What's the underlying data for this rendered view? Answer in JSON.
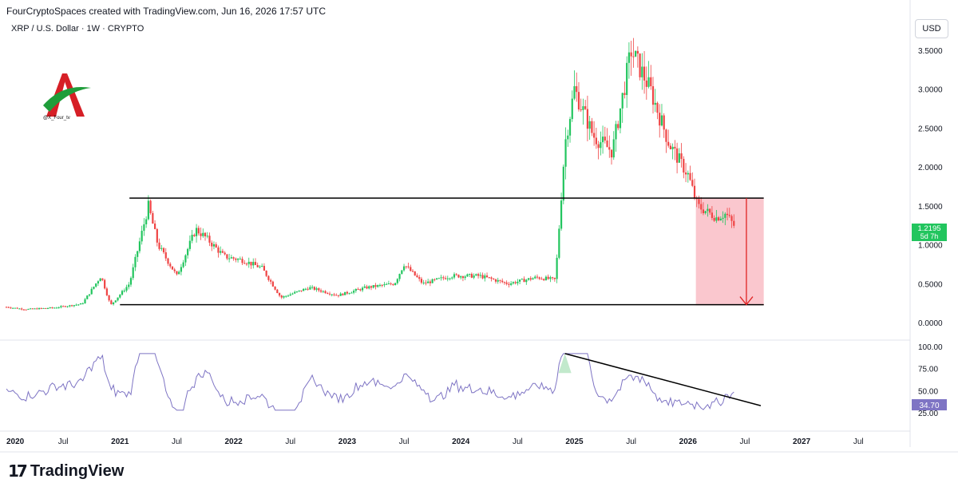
{
  "header": {
    "attribution": "FourCryptoSpaces created with TradingView.com, Jun 16, 2026 17:57 UTC"
  },
  "symbol": {
    "title": "XRP / U.S. Dollar · 1W · CRYPTO"
  },
  "currency_button": {
    "label": "USD"
  },
  "logo": {
    "handle": "@X_Four_tv"
  },
  "footer": {
    "brand": "TradingView",
    "brand_icon": "tradingview-logo-icon"
  },
  "colors": {
    "up": "#22c55e",
    "down": "#ef4444",
    "rsi": "#7e74c4",
    "zone": "#f8b4bd",
    "price_label": "#22c55e",
    "rsi_label": "#7e74c4",
    "arrow": "#e02424"
  },
  "chart_data": [
    {
      "type": "candlestick",
      "title": "XRP / U.S. Dollar · 1W · CRYPTO",
      "y_axis": {
        "ticks": [
          "3.5000",
          "3.0000",
          "2.5000",
          "2.0000",
          "1.5000",
          "1.0000",
          "0.5000",
          "0.0000"
        ],
        "range": [
          0,
          3.6
        ]
      },
      "x_axis": {
        "ticks": [
          "2020",
          "Jul",
          "2021",
          "Jul",
          "2022",
          "Jul",
          "2023",
          "Jul",
          "2024",
          "Jul",
          "2025",
          "Jul",
          "2026",
          "Jul",
          "2027",
          "Jul"
        ],
        "bold": [
          "2020",
          "2021",
          "2022",
          "2023",
          "2024",
          "2025",
          "2026",
          "2027"
        ]
      },
      "current_price": {
        "value": "1.2195",
        "countdown": "5d 7h"
      },
      "levels": {
        "resistance": 1.6,
        "support": 0.23
      },
      "target_zone": {
        "top": 1.6,
        "bottom": 0.23,
        "from": "2026",
        "arrow_to": 0.23
      },
      "price_path": [
        [
          "2020-01",
          0.2
        ],
        [
          "2020-03",
          0.17
        ],
        [
          "2020-06",
          0.19
        ],
        [
          "2020-09",
          0.24
        ],
        [
          "2020-11",
          0.6
        ],
        [
          "2020-12",
          0.22
        ],
        [
          "2021-02",
          0.5
        ],
        [
          "2021-04",
          1.5
        ],
        [
          "2021-05",
          1.0
        ],
        [
          "2021-07",
          0.6
        ],
        [
          "2021-09",
          1.2
        ],
        [
          "2021-10",
          1.1
        ],
        [
          "2021-12",
          0.85
        ],
        [
          "2022-02",
          0.8
        ],
        [
          "2022-04",
          0.7
        ],
        [
          "2022-06",
          0.32
        ],
        [
          "2022-09",
          0.45
        ],
        [
          "2022-12",
          0.35
        ],
        [
          "2023-03",
          0.45
        ],
        [
          "2023-06",
          0.5
        ],
        [
          "2023-07",
          0.75
        ],
        [
          "2023-09",
          0.5
        ],
        [
          "2023-12",
          0.6
        ],
        [
          "2024-03",
          0.6
        ],
        [
          "2024-06",
          0.5
        ],
        [
          "2024-09",
          0.58
        ],
        [
          "2024-11",
          0.55
        ],
        [
          "2024-12",
          2.3
        ],
        [
          "2025-01",
          3.0
        ],
        [
          "2025-03",
          2.4
        ],
        [
          "2025-05",
          2.2
        ],
        [
          "2025-07",
          3.5
        ],
        [
          "2025-09",
          3.0
        ],
        [
          "2025-11",
          2.3
        ],
        [
          "2026-01",
          1.9
        ],
        [
          "2026-02",
          1.5
        ],
        [
          "2026-04",
          1.35
        ],
        [
          "2026-05",
          1.4
        ],
        [
          "2026-06",
          1.2195
        ]
      ],
      "trendlines": [
        {
          "name": "resistance",
          "from": [
            "2021-02",
            1.6
          ],
          "to": [
            "2026-09",
            1.6
          ]
        },
        {
          "name": "support",
          "from": [
            "2021-01",
            0.23
          ],
          "to": [
            "2026-09",
            0.23
          ]
        }
      ]
    },
    {
      "type": "line",
      "title": "",
      "y_axis": {
        "ticks": [
          "100.00",
          "75.00",
          "50.00",
          "25.00"
        ],
        "range": [
          20,
          100
        ]
      },
      "current_value": "34.70",
      "descending_trendline": {
        "from": [
          "2024-12",
          92
        ],
        "to": [
          "2026-07",
          33
        ]
      }
    }
  ]
}
